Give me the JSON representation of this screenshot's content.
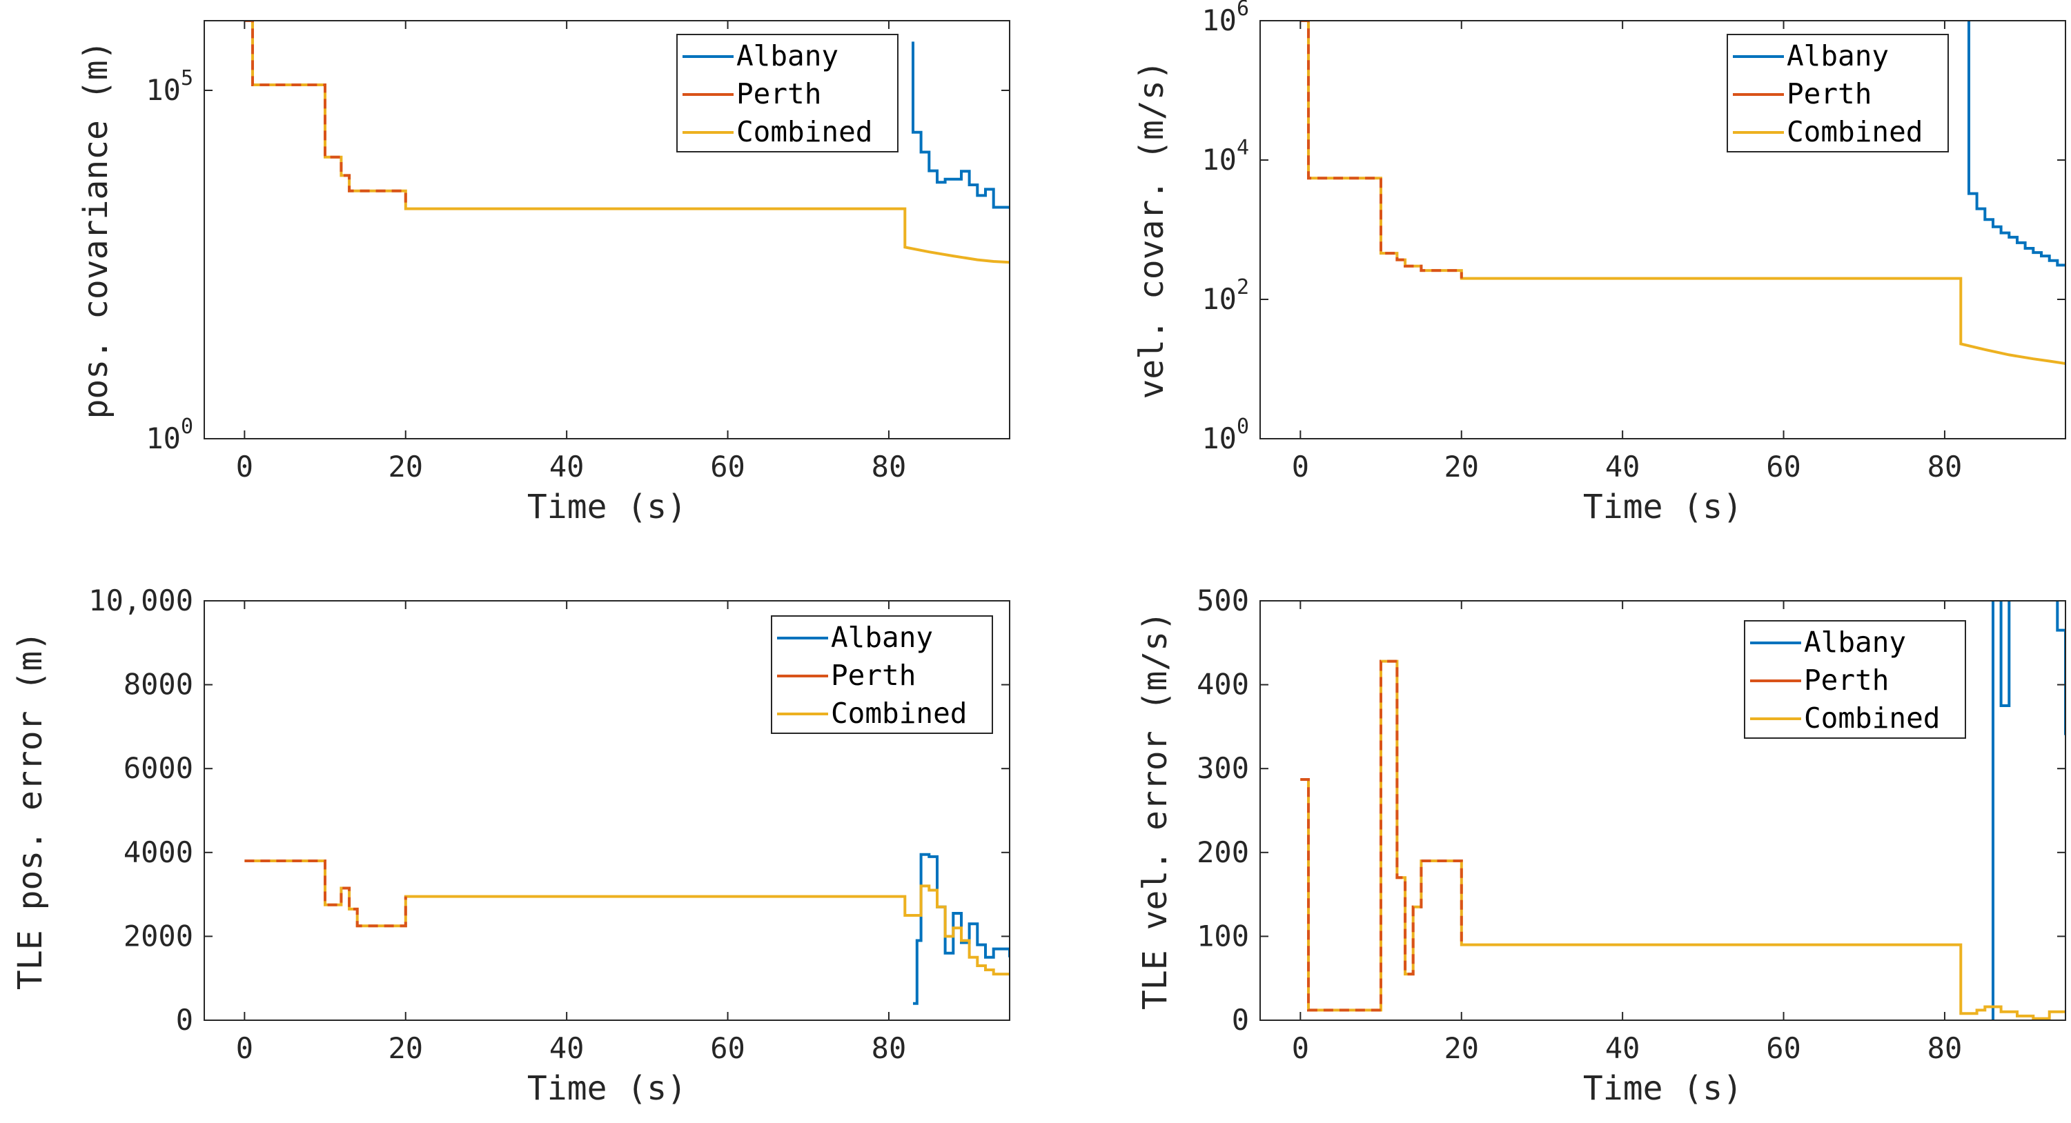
{
  "colors": {
    "Albany": "#0072BD",
    "Perth": "#D95319",
    "Combined": "#EDB120",
    "axis": "#262626"
  },
  "chart_data": [
    {
      "type": "line",
      "yscale": "log",
      "title": "",
      "xlabel": "Time (s)",
      "ylabel": "pos. covariance (m)",
      "xlim": [
        -5,
        95
      ],
      "ylim_log10": [
        0,
        6
      ],
      "xticks": [
        0,
        20,
        40,
        60,
        80
      ],
      "xtick_labels": [
        "0",
        "20",
        "40",
        "60",
        "80"
      ],
      "yticks": [
        {
          "value": 1,
          "base": "10",
          "exp": "0"
        },
        {
          "value": 100000,
          "base": "10",
          "exp": "5"
        }
      ],
      "legend": [
        "Albany",
        "Perth",
        "Combined"
      ],
      "legend_position": "top-right",
      "series": [
        {
          "name": "Albany",
          "x": [
            83,
            83,
            84,
            84,
            85,
            85,
            86,
            86,
            87,
            87,
            88,
            88,
            89,
            89,
            90,
            90,
            91,
            91,
            92,
            92,
            93,
            93,
            95,
            95
          ],
          "y": [
            500000,
            25000,
            25000,
            13000,
            13000,
            7000,
            7000,
            4800,
            4800,
            5300,
            5300,
            5300,
            5300,
            6900,
            6900,
            4400,
            4400,
            3100,
            3100,
            3800,
            3800,
            2100,
            2100,
            2000
          ]
        },
        {
          "name": "Perth",
          "x": [
            0,
            1,
            1,
            10,
            10,
            12,
            12,
            13,
            13,
            20,
            20
          ],
          "y": [
            1000000,
            1000000,
            120000,
            120000,
            11000,
            11000,
            6000,
            6000,
            3600,
            3600,
            2000
          ]
        },
        {
          "name": "Combined",
          "x": [
            0,
            1,
            1,
            10,
            10,
            12,
            12,
            13,
            13,
            20,
            20,
            82,
            82,
            85,
            88,
            91,
            93,
            95
          ],
          "y": [
            1000000,
            1000000,
            120000,
            120000,
            11000,
            11000,
            6000,
            6000,
            3600,
            3600,
            2000,
            2000,
            560,
            480,
            420,
            370,
            350,
            340
          ]
        }
      ]
    },
    {
      "type": "line",
      "yscale": "log",
      "title": "",
      "xlabel": "Time (s)",
      "ylabel": "vel. covar. (m/s)",
      "xlim": [
        -5,
        95
      ],
      "ylim_log10": [
        0,
        6
      ],
      "xticks": [
        0,
        20,
        40,
        60,
        80
      ],
      "xtick_labels": [
        "0",
        "20",
        "40",
        "60",
        "80"
      ],
      "yticks": [
        {
          "value": 1,
          "base": "10",
          "exp": "0"
        },
        {
          "value": 100,
          "base": "10",
          "exp": "2"
        },
        {
          "value": 10000,
          "base": "10",
          "exp": "4"
        },
        {
          "value": 1000000,
          "base": "10",
          "exp": "6"
        }
      ],
      "legend": [
        "Albany",
        "Perth",
        "Combined"
      ],
      "legend_position": "top-right",
      "series": [
        {
          "name": "Albany",
          "x": [
            83,
            83,
            84,
            84,
            85,
            85,
            86,
            86,
            87,
            87,
            88,
            88,
            89,
            89,
            90,
            90,
            91,
            91,
            92,
            92,
            93,
            93,
            94,
            94,
            95
          ],
          "y": [
            1000000,
            3300,
            3300,
            2000,
            2000,
            1400,
            1400,
            1100,
            1100,
            900,
            900,
            780,
            780,
            650,
            650,
            540,
            540,
            470,
            470,
            420,
            420,
            360,
            360,
            310,
            310
          ]
        },
        {
          "name": "Perth",
          "x": [
            0,
            1,
            1,
            10,
            10,
            12,
            12,
            13,
            13,
            15,
            15,
            20,
            20
          ],
          "y": [
            1000000,
            1000000,
            5500,
            5500,
            460,
            460,
            370,
            370,
            300,
            300,
            260,
            260,
            200
          ]
        },
        {
          "name": "Combined",
          "x": [
            0,
            1,
            1,
            10,
            10,
            12,
            12,
            13,
            13,
            15,
            15,
            20,
            20,
            82,
            82,
            85,
            88,
            91,
            93,
            95
          ],
          "y": [
            1000000,
            1000000,
            5500,
            5500,
            460,
            460,
            370,
            370,
            300,
            300,
            260,
            260,
            200,
            200,
            23,
            19,
            16,
            14,
            13,
            12
          ]
        }
      ]
    },
    {
      "type": "line",
      "yscale": "linear",
      "title": "",
      "xlabel": "Time (s)",
      "ylabel": "TLE pos. error (m)",
      "xlim": [
        -5,
        95
      ],
      "ylim": [
        0,
        10000
      ],
      "xticks": [
        0,
        20,
        40,
        60,
        80
      ],
      "xtick_labels": [
        "0",
        "20",
        "40",
        "60",
        "80"
      ],
      "yticks": [
        0,
        2000,
        4000,
        6000,
        8000,
        10000
      ],
      "ytick_labels": [
        "0",
        "2000",
        "4000",
        "6000",
        "8000",
        "10,000"
      ],
      "legend": [
        "Albany",
        "Perth",
        "Combined"
      ],
      "legend_position": "top-right",
      "series": [
        {
          "name": "Albany",
          "x": [
            83,
            83.5,
            83.5,
            84,
            84,
            85,
            85,
            86,
            86,
            87,
            87,
            88,
            88,
            89,
            89,
            90,
            90,
            91,
            91,
            92,
            92,
            93,
            93,
            94,
            94,
            95,
            95
          ],
          "y": [
            400,
            400,
            1900,
            1900,
            3950,
            3950,
            3900,
            3900,
            2700,
            2700,
            1600,
            1600,
            2550,
            2550,
            1850,
            1850,
            2300,
            2300,
            1800,
            1800,
            1500,
            1500,
            1700,
            1700,
            1700,
            1700,
            1500
          ]
        },
        {
          "name": "Perth",
          "x": [
            0,
            10,
            10,
            12,
            12,
            13,
            13,
            14,
            14,
            15,
            15,
            20,
            20
          ],
          "y": [
            3800,
            3800,
            2750,
            2750,
            3150,
            3150,
            2650,
            2650,
            2250,
            2250,
            2250,
            2250,
            2950
          ]
        },
        {
          "name": "Combined",
          "x": [
            0,
            10,
            10,
            12,
            12,
            13,
            13,
            14,
            14,
            15,
            15,
            20,
            20,
            82,
            82,
            84,
            84,
            85,
            85,
            86,
            86,
            87,
            87,
            88,
            88,
            89,
            89,
            90,
            90,
            91,
            91,
            92,
            92,
            93,
            93,
            95
          ],
          "y": [
            3800,
            3800,
            2750,
            2750,
            3150,
            3150,
            2650,
            2650,
            2250,
            2250,
            2250,
            2250,
            2950,
            2950,
            2500,
            2500,
            3200,
            3200,
            3100,
            3100,
            2700,
            2700,
            2000,
            2000,
            2200,
            2200,
            1900,
            1900,
            1500,
            1500,
            1300,
            1300,
            1200,
            1200,
            1100,
            1100
          ]
        }
      ]
    },
    {
      "type": "line",
      "yscale": "linear",
      "title": "",
      "xlabel": "Time (s)",
      "ylabel": "TLE vel. error (m/s)",
      "xlim": [
        -5,
        95
      ],
      "ylim": [
        0,
        500
      ],
      "xticks": [
        0,
        20,
        40,
        60,
        80
      ],
      "xtick_labels": [
        "0",
        "20",
        "40",
        "60",
        "80"
      ],
      "yticks": [
        0,
        100,
        200,
        300,
        400,
        500
      ],
      "ytick_labels": [
        "0",
        "100",
        "200",
        "300",
        "400",
        "500"
      ],
      "legend": [
        "Albany",
        "Perth",
        "Combined"
      ],
      "legend_position": "top-right",
      "series": [
        {
          "name": "Albany",
          "x": [
            86,
            86,
            87,
            87,
            88,
            88,
            94,
            94,
            95,
            95
          ],
          "y": [
            0,
            600,
            600,
            375,
            375,
            600,
            600,
            465,
            465,
            340
          ]
        },
        {
          "name": "Perth",
          "x": [
            0,
            1,
            1,
            10,
            10,
            12,
            12,
            13,
            13,
            14,
            14,
            15,
            15,
            20,
            20
          ],
          "y": [
            287,
            287,
            12,
            12,
            428,
            428,
            170,
            170,
            55,
            55,
            135,
            135,
            190,
            190,
            90
          ]
        },
        {
          "name": "Combined",
          "x": [
            0,
            1,
            1,
            10,
            10,
            12,
            12,
            13,
            13,
            14,
            14,
            15,
            15,
            20,
            20,
            82,
            82,
            84,
            84,
            85,
            85,
            87,
            87,
            89,
            89,
            91,
            91,
            93,
            93,
            95
          ],
          "y": [
            287,
            287,
            12,
            12,
            428,
            428,
            170,
            170,
            55,
            55,
            135,
            135,
            190,
            190,
            90,
            90,
            8,
            8,
            12,
            12,
            16,
            16,
            10,
            10,
            5,
            5,
            2,
            2,
            10,
            10
          ]
        }
      ]
    }
  ]
}
